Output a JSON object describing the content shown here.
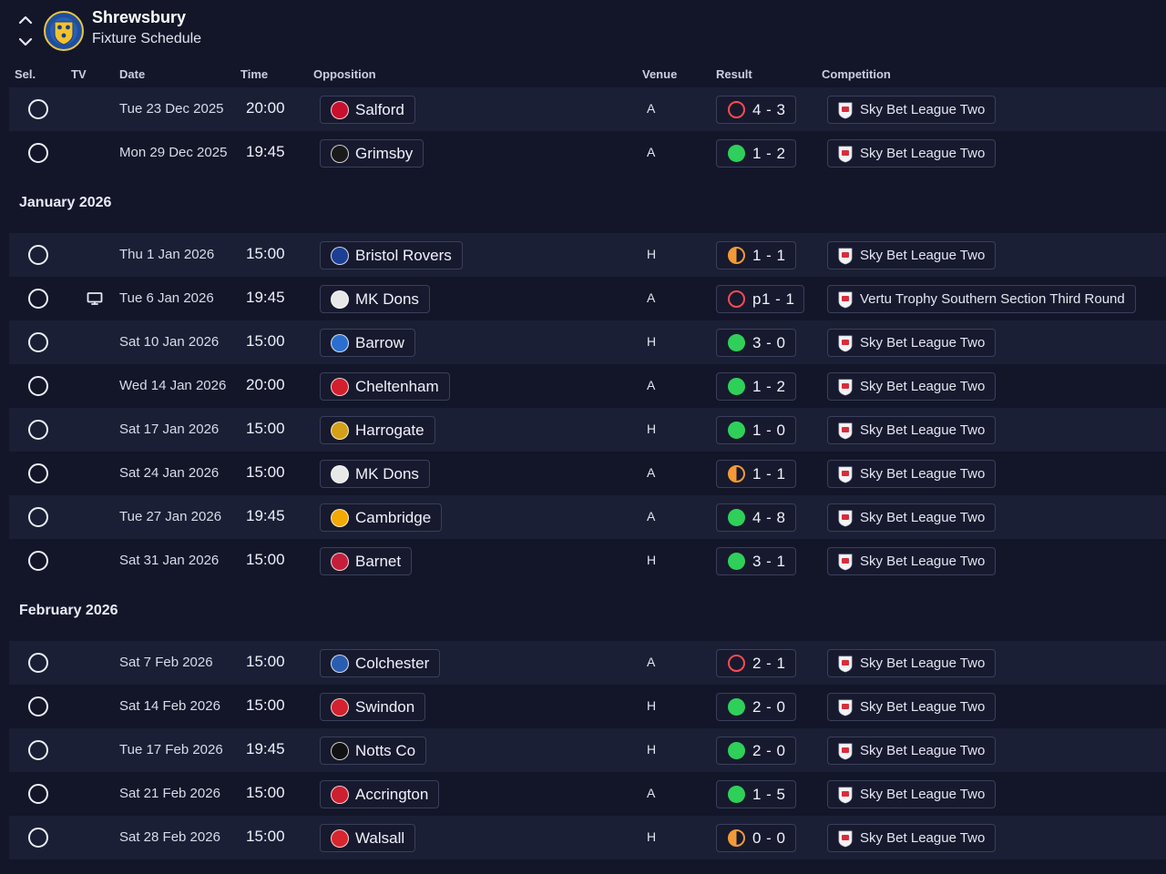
{
  "header": {
    "club_name": "Shrewsbury",
    "page_title": "Fixture Schedule"
  },
  "columns": {
    "sel": "Sel.",
    "tv": "TV",
    "date": "Date",
    "time": "Time",
    "opposition": "Opposition",
    "venue": "Venue",
    "result": "Result",
    "competition": "Competition"
  },
  "months": {
    "january": "January 2026",
    "february": "February 2026"
  },
  "colors": {
    "win": "#2fd05a",
    "loss": "#ff4a53",
    "draw": "#f39a38",
    "background": "#131629",
    "row_alt": "#1b1f35"
  },
  "fixtures": [
    {
      "date": "Tue 23 Dec 2025",
      "time": "20:00",
      "opponent": "Salford",
      "opp_color": "#c8102e",
      "venue": "A",
      "result": "loss",
      "score": "4 - 3",
      "competition": "Sky Bet League Two",
      "tv": false
    },
    {
      "date": "Mon 29 Dec 2025",
      "time": "19:45",
      "opponent": "Grimsby",
      "opp_color": "#1a1a1a",
      "venue": "A",
      "result": "win",
      "score": "1 - 2",
      "competition": "Sky Bet League Two",
      "tv": false
    },
    {
      "date": "Thu 1 Jan 2026",
      "time": "15:00",
      "opponent": "Bristol Rovers",
      "opp_color": "#1c3f94",
      "venue": "H",
      "result": "draw",
      "score": "1 - 1",
      "competition": "Sky Bet League Two",
      "tv": false
    },
    {
      "date": "Tue 6 Jan 2026",
      "time": "19:45",
      "opponent": "MK Dons",
      "opp_color": "#e8e8e8",
      "venue": "A",
      "result": "loss",
      "score": "p1 - 1",
      "competition": "Vertu Trophy Southern Section Third Round",
      "tv": true
    },
    {
      "date": "Sat 10 Jan 2026",
      "time": "15:00",
      "opponent": "Barrow",
      "opp_color": "#2a6fcf",
      "venue": "H",
      "result": "win",
      "score": "3 - 0",
      "competition": "Sky Bet League Two",
      "tv": false
    },
    {
      "date": "Wed 14 Jan 2026",
      "time": "20:00",
      "opponent": "Cheltenham",
      "opp_color": "#d21f2d",
      "venue": "A",
      "result": "win",
      "score": "1 - 2",
      "competition": "Sky Bet League Two",
      "tv": false
    },
    {
      "date": "Sat 17 Jan 2026",
      "time": "15:00",
      "opponent": "Harrogate",
      "opp_color": "#d4a017",
      "venue": "H",
      "result": "win",
      "score": "1 - 0",
      "competition": "Sky Bet League Two",
      "tv": false
    },
    {
      "date": "Sat 24 Jan 2026",
      "time": "15:00",
      "opponent": "MK Dons",
      "opp_color": "#e8e8e8",
      "venue": "A",
      "result": "draw",
      "score": "1 - 1",
      "competition": "Sky Bet League Two",
      "tv": false
    },
    {
      "date": "Tue 27 Jan 2026",
      "time": "19:45",
      "opponent": "Cambridge",
      "opp_color": "#f2a900",
      "venue": "A",
      "result": "win",
      "score": "4 - 8",
      "competition": "Sky Bet League Two",
      "tv": false
    },
    {
      "date": "Sat 31 Jan 2026",
      "time": "15:00",
      "opponent": "Barnet",
      "opp_color": "#c41e3a",
      "venue": "H",
      "result": "win",
      "score": "3 - 1",
      "competition": "Sky Bet League Two",
      "tv": false
    },
    {
      "date": "Sat 7 Feb 2026",
      "time": "15:00",
      "opponent": "Colchester",
      "opp_color": "#2a5db0",
      "venue": "A",
      "result": "loss",
      "score": "2 - 1",
      "competition": "Sky Bet League Two",
      "tv": false
    },
    {
      "date": "Sat 14 Feb 2026",
      "time": "15:00",
      "opponent": "Swindon",
      "opp_color": "#d4212f",
      "venue": "H",
      "result": "win",
      "score": "2 - 0",
      "competition": "Sky Bet League Two",
      "tv": false
    },
    {
      "date": "Tue 17 Feb 2026",
      "time": "19:45",
      "opponent": "Notts Co",
      "opp_color": "#111111",
      "venue": "H",
      "result": "win",
      "score": "2 - 0",
      "competition": "Sky Bet League Two",
      "tv": false
    },
    {
      "date": "Sat 21 Feb 2026",
      "time": "15:00",
      "opponent": "Accrington",
      "opp_color": "#cc1f2f",
      "venue": "A",
      "result": "win",
      "score": "1 - 5",
      "competition": "Sky Bet League Two",
      "tv": false
    },
    {
      "date": "Sat 28 Feb 2026",
      "time": "15:00",
      "opponent": "Walsall",
      "opp_color": "#d8262e",
      "venue": "H",
      "result": "draw",
      "score": "0 - 0",
      "competition": "Sky Bet League Two",
      "tv": false
    }
  ]
}
